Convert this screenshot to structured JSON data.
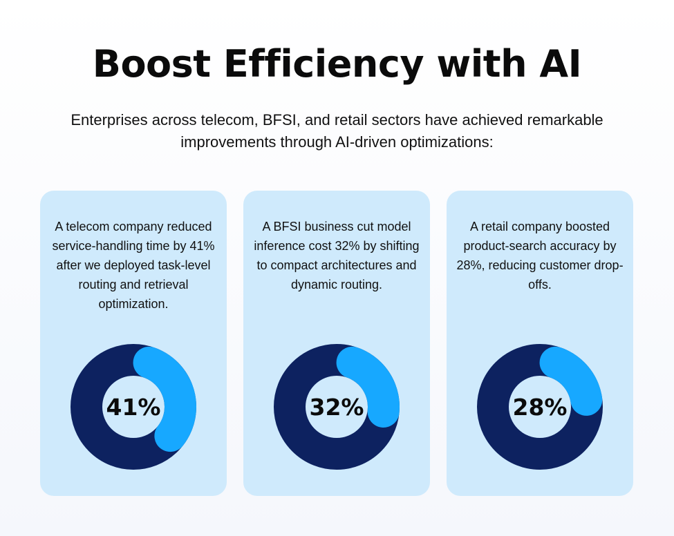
{
  "header": {
    "title": "Boost Efficiency with AI",
    "subtitle": "Enterprises across telecom, BFSI, and retail sectors have achieved remarkable improvements through AI-driven optimizations:"
  },
  "colors": {
    "card_bg": "#cfeafc",
    "donut_track": "#0d2260",
    "donut_value": "#17a8ff",
    "donut_hole": "#cfeafc"
  },
  "chart_data": [
    {
      "type": "pie",
      "text": "A telecom company reduced service-handling time by 41% after we deployed task-level routing and retrieval optimization.",
      "value": 41,
      "label": "41%"
    },
    {
      "type": "pie",
      "text": "A BFSI business cut model inference cost 32% by shifting to compact architectures and dynamic routing.",
      "value": 32,
      "label": "32%"
    },
    {
      "type": "pie",
      "text": "A retail company boosted product-search accuracy by 28%, reducing customer drop-offs.",
      "value": 28,
      "label": "28%"
    }
  ]
}
